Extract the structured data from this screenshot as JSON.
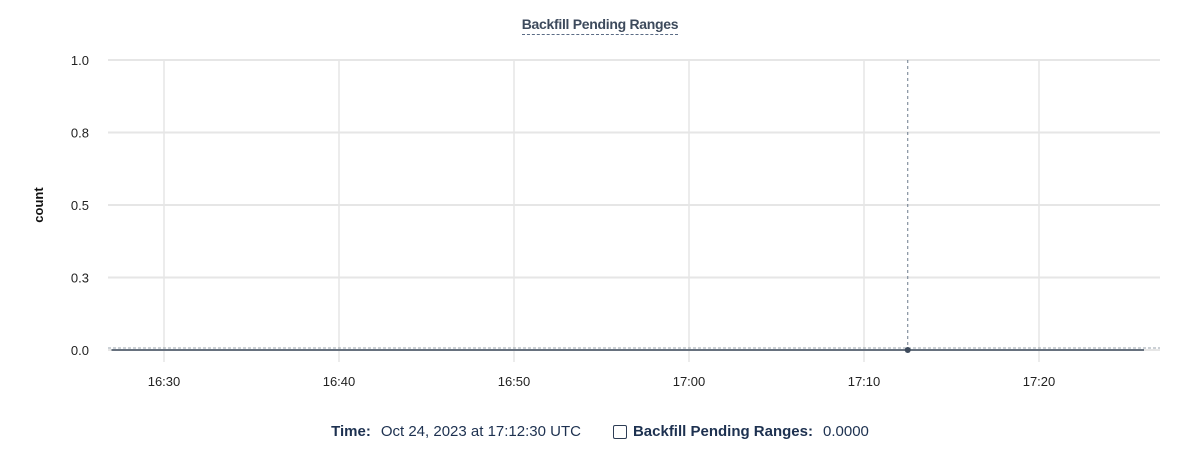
{
  "chart_data": {
    "type": "line",
    "title": "Backfill Pending Ranges",
    "xlabel": "",
    "ylabel": "count",
    "x_ticks": [
      "16:30",
      "16:40",
      "16:50",
      "17:00",
      "17:10",
      "17:20"
    ],
    "y_ticks": [
      {
        "value": 0,
        "label": "0.0"
      },
      {
        "value": 0.25,
        "label": "0.3"
      },
      {
        "value": 0.5,
        "label": "0.5"
      },
      {
        "value": 0.75,
        "label": "0.8"
      },
      {
        "value": 1.0,
        "label": "1.0"
      }
    ],
    "xlim": [
      "16:26:50",
      "17:26:50"
    ],
    "ylim": [
      0,
      1
    ],
    "grid": true,
    "series": [
      {
        "name": "Backfill Pending Ranges",
        "color": "#3d4a5c",
        "x": [
          "16:27",
          "16:35",
          "16:45",
          "16:55",
          "17:05",
          "17:12:30",
          "17:20",
          "17:26"
        ],
        "y": [
          0,
          0,
          0,
          0,
          0,
          0,
          0,
          0
        ]
      }
    ],
    "hover": {
      "x": "17:12:30",
      "y": 0
    }
  },
  "legend": {
    "time_label": "Time:",
    "time_value": "Oct 24, 2023 at 17:12:30 UTC",
    "series_label": "Backfill Pending Ranges:",
    "series_value": "0.0000"
  }
}
